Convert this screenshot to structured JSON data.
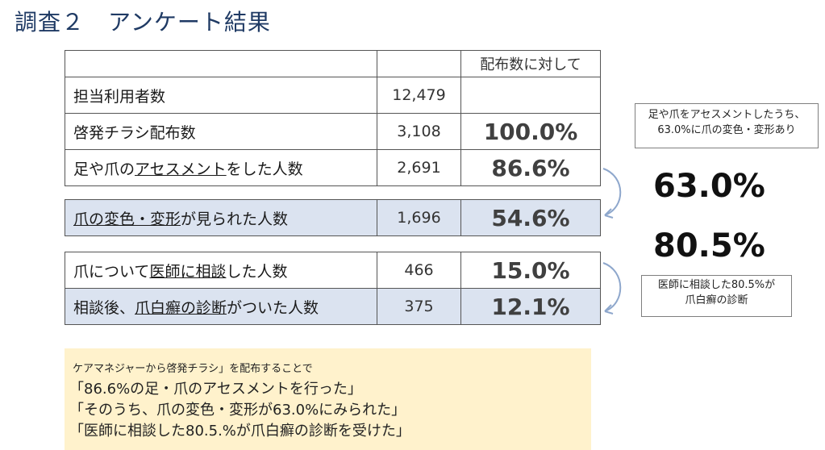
{
  "title": "調査２　アンケート結果",
  "table": {
    "header": {
      "col3": "配布数に対して"
    },
    "rows": [
      {
        "label": "担当利用者数",
        "count": "12,479",
        "pct": ""
      },
      {
        "label": "啓発チラシ配布数",
        "count": "3,108",
        "pct": "100.0%"
      },
      {
        "label_parts": [
          "足や爪の",
          "アセスメント",
          "をした人数"
        ],
        "count": "2,691",
        "pct": "86.6%"
      },
      {
        "label_parts": [
          "爪の変色・変形",
          "が見られた人数"
        ],
        "count": "1,696",
        "pct": "54.6%"
      },
      {
        "label_parts": [
          "爪について",
          "医師に相談",
          "した人数"
        ],
        "count": "466",
        "pct": "15.0%"
      },
      {
        "label_parts": [
          "相談後、",
          "爪白癬の診断",
          "がついた人数"
        ],
        "count": "375",
        "pct": "12.1%"
      }
    ]
  },
  "callouts": {
    "box1_line1": "足や爪をアセスメントしたうち、",
    "box1_line2": "63.0%に爪の変色・変形あり",
    "big1": "63.0%",
    "big2": "80.5%",
    "box2_line1": "医師に相談した80.5%が",
    "box2_line2": "爪白癬の診断"
  },
  "note": {
    "intro": "ケアマネジャーから啓発チラシ」を配布することで",
    "line1": "「86.6%の足・爪のアセスメントを行った」",
    "line2": "「そのうち、爪の変色・変形が63.0%にみられた」",
    "line3": "「医師に相談した80.5.%が爪白癬の診断を受けた」"
  },
  "colors": {
    "title": "#1f3a64",
    "row_highlight": "#dbe3f0",
    "note_bg": "#fff2cc",
    "arrow": "#8ea7cc"
  }
}
